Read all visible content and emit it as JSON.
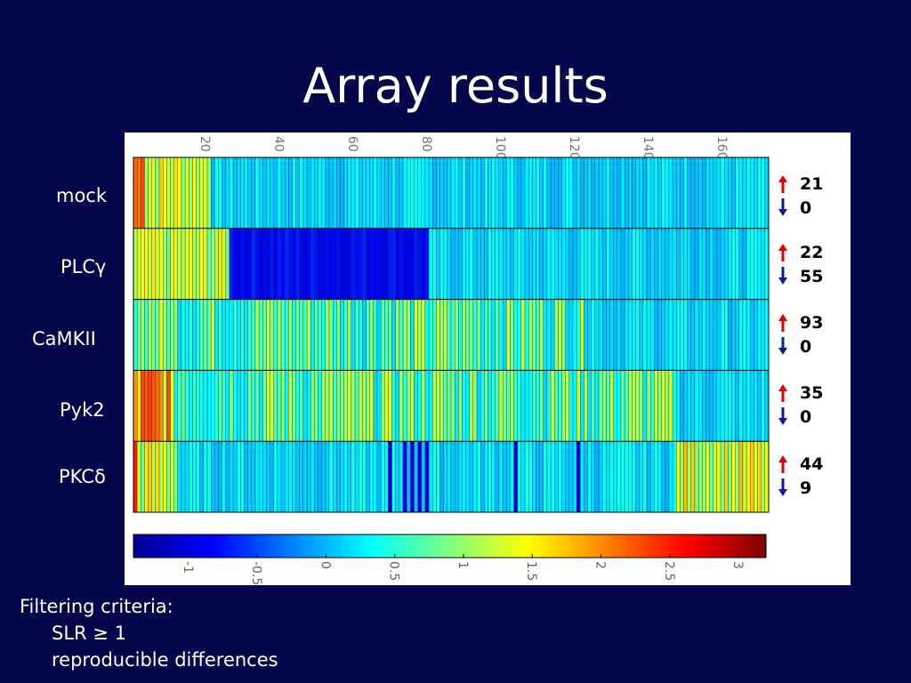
{
  "slide": {
    "title": "Array results"
  },
  "filter": {
    "heading": "Filtering criteria:",
    "items": [
      "SLR ≥ 1",
      "reproducible differences"
    ]
  },
  "colors": {
    "background": "#03064a",
    "up_arrow": "#dd0000",
    "down_arrow": "#0b1a9c"
  },
  "chart_data": {
    "type": "heatmap",
    "x_ticks": [
      "20",
      "40",
      "60",
      "80",
      "100",
      "120",
      "140",
      "160"
    ],
    "x_range": [
      1,
      172
    ],
    "rows": [
      {
        "name": "mock",
        "up": "21",
        "down": "0"
      },
      {
        "name": "PLCγ",
        "up": "22",
        "down": "55"
      },
      {
        "name": "CaMKII",
        "up": "93",
        "down": "0"
      },
      {
        "name": "Pyk2",
        "up": "35",
        "down": "0"
      },
      {
        "name": "PKCδ",
        "up": "44",
        "down": "9"
      }
    ],
    "colorbar": {
      "range": [
        -1.4,
        3.2
      ],
      "ticks": [
        "-1",
        "-0.5",
        "0",
        "0.5",
        "1",
        "1.5",
        "2",
        "2.5",
        "3"
      ],
      "tick_values": [
        -1,
        -0.5,
        0,
        0.5,
        1,
        1.5,
        2,
        2.5,
        3
      ]
    },
    "grid": false
  }
}
